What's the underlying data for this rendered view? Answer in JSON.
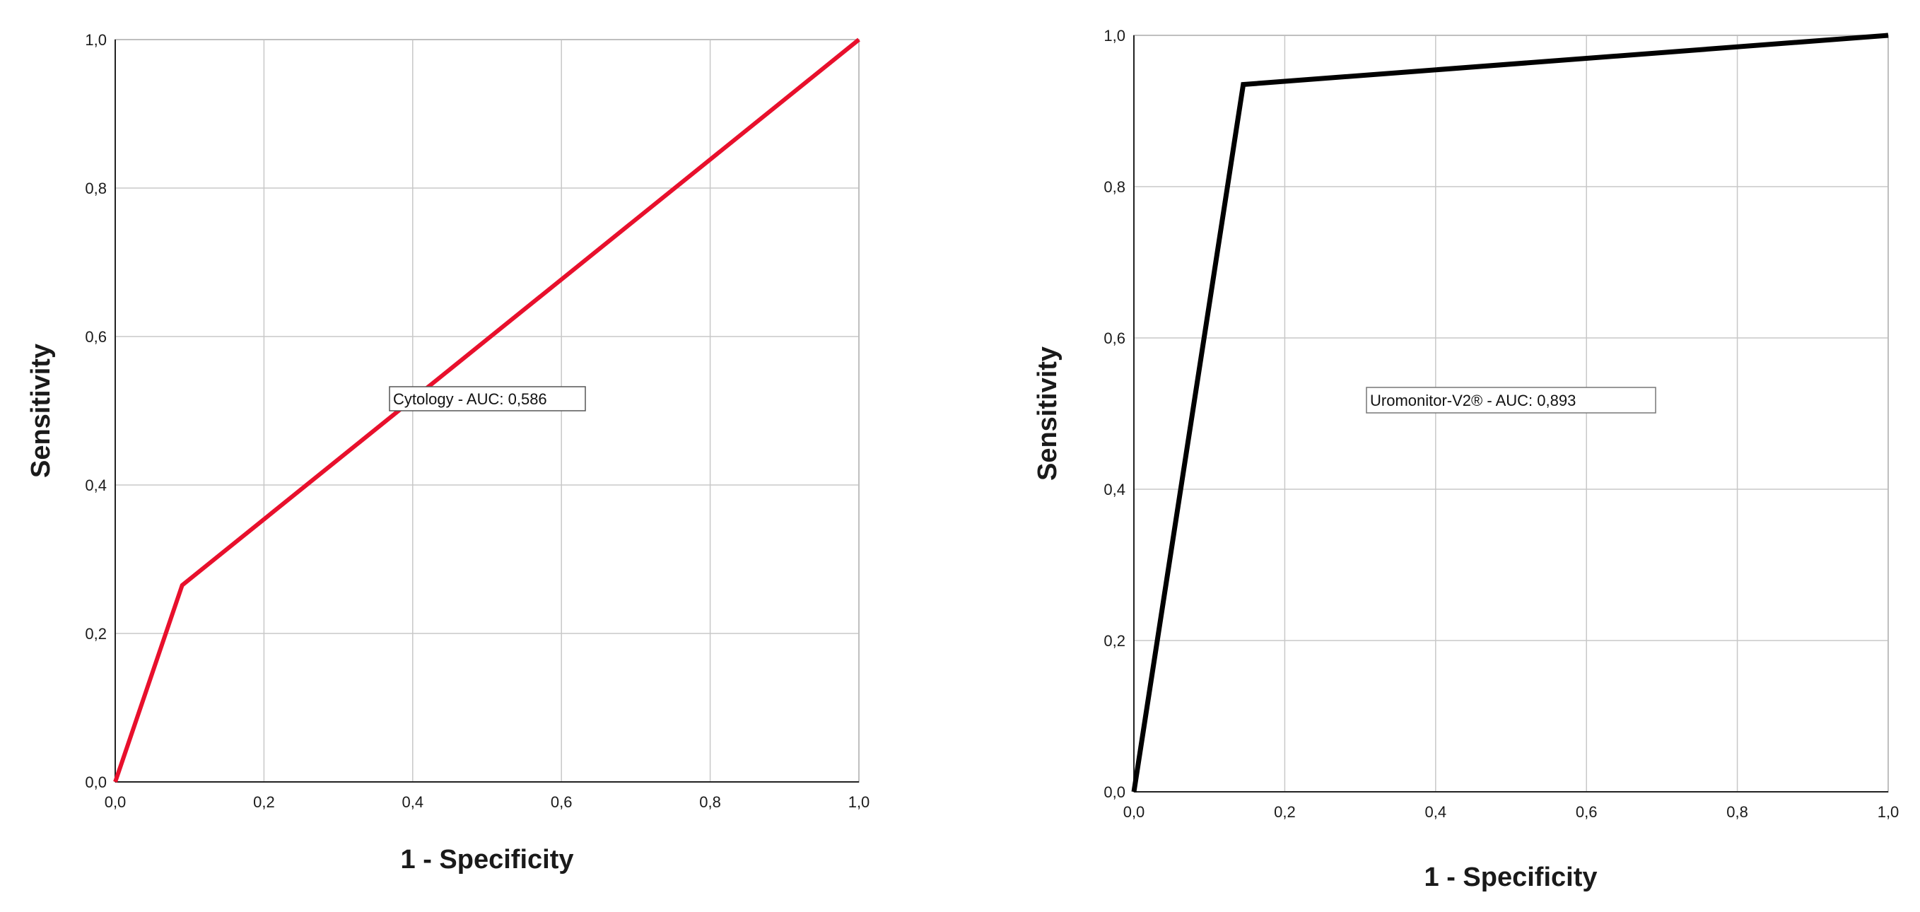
{
  "chart_data": [
    {
      "type": "line",
      "xlabel": "1 - Specificity",
      "ylabel": "Sensitivity",
      "xlim": [
        0,
        1
      ],
      "ylim": [
        0,
        1
      ],
      "grid": true,
      "x_ticks": [
        "0,0",
        "0,2",
        "0,4",
        "0,6",
        "0,8",
        "1,0"
      ],
      "y_ticks": [
        "0,0",
        "0,2",
        "0,4",
        "0,6",
        "0,8",
        "1,0"
      ],
      "annotation": "Cytology - AUC: 0,586",
      "series": [
        {
          "color": "#e8102c",
          "x": [
            0.0,
            0.09,
            1.0
          ],
          "y": [
            0.0,
            0.265,
            1.0
          ]
        }
      ]
    },
    {
      "type": "line",
      "xlabel": "1 - Specificity",
      "ylabel": "Sensitivity",
      "xlim": [
        0,
        1
      ],
      "ylim": [
        0,
        1
      ],
      "grid": true,
      "x_ticks": [
        "0,0",
        "0,2",
        "0,4",
        "0,6",
        "0,8",
        "1,0"
      ],
      "y_ticks": [
        "0,0",
        "0,2",
        "0,4",
        "0,6",
        "0,8",
        "1,0"
      ],
      "annotation": "Uromonitor-V2® - AUC: 0,893",
      "series": [
        {
          "color": "#000000",
          "x": [
            0.0,
            0.145,
            1.0
          ],
          "y": [
            0.0,
            0.935,
            1.0
          ]
        }
      ]
    }
  ]
}
